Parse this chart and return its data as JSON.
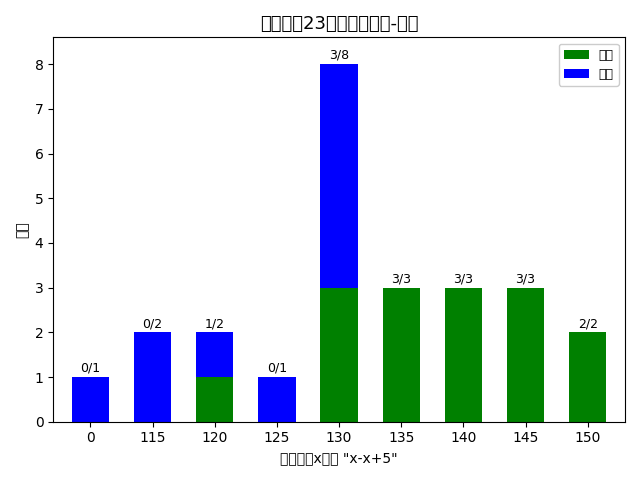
{
  "title": "四川大学23软学录取情况-复试",
  "xlabel": "分数段，x表示 \"x-x+5\"",
  "ylabel": "人数",
  "categories": [
    "0",
    "115",
    "120",
    "125",
    "130",
    "135",
    "140",
    "145",
    "150"
  ],
  "admitted": [
    0,
    0,
    1,
    0,
    3,
    3,
    3,
    3,
    2
  ],
  "reexam": [
    1,
    2,
    1,
    1,
    5,
    0,
    0,
    0,
    0
  ],
  "labels": [
    "0/1",
    "0/2",
    "1/2",
    "0/1",
    "3/8",
    "3/3",
    "3/3",
    "3/3",
    "2/2"
  ],
  "color_admitted": "#008000",
  "color_reexam": "#0000FF",
  "ylim": [
    0,
    8.6
  ],
  "legend_admitted": "录取",
  "legend_reexam": "复试",
  "bar_width": 0.6,
  "title_fontsize": 13,
  "label_fontsize": 9,
  "tick_fontsize": 10,
  "axis_label_fontsize": 10,
  "bg_color": "#ffffff",
  "plot_bg_color": "#ffffff"
}
